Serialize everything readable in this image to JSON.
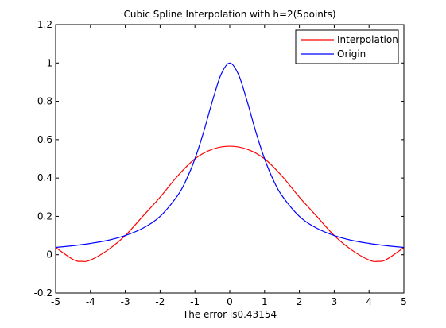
{
  "chart_data": {
    "type": "line",
    "title": "Cubic Spline Interpolation with h=2(5points)",
    "xlabel": "The error is0.43154",
    "ylabel": "",
    "xlim": [
      -5,
      5
    ],
    "ylim": [
      -0.2,
      1.2
    ],
    "xticks": [
      -5,
      -4,
      -3,
      -2,
      -1,
      0,
      1,
      2,
      3,
      4,
      5
    ],
    "yticks": [
      -0.2,
      0,
      0.2,
      0.4,
      0.6,
      0.8,
      1,
      1.2
    ],
    "xtick_labels": [
      "-5",
      "-4",
      "-3",
      "-2",
      "-1",
      "0",
      "1",
      "2",
      "3",
      "4",
      "5"
    ],
    "ytick_labels": [
      "-0.2",
      "0",
      "0.2",
      "0.4",
      "0.6",
      "0.8",
      "1",
      "1.2"
    ],
    "grid": false,
    "legend": {
      "position": "top-right"
    },
    "series": [
      {
        "name": "Interpolation",
        "color": "#ff0000",
        "x": [
          -5,
          -4.5,
          -4.25,
          -4,
          -3.5,
          -3,
          -2.5,
          -2,
          -1.5,
          -1,
          -0.5,
          0,
          0.5,
          1,
          1.5,
          2,
          2.5,
          3,
          3.5,
          4,
          4.25,
          4.5,
          5
        ],
        "y": [
          0.038,
          -0.025,
          -0.035,
          -0.028,
          0.025,
          0.1,
          0.2,
          0.3,
          0.41,
          0.5,
          0.55,
          0.566,
          0.55,
          0.5,
          0.41,
          0.3,
          0.2,
          0.1,
          0.025,
          -0.028,
          -0.035,
          -0.025,
          0.038
        ]
      },
      {
        "name": "Origin",
        "color": "#0000ff",
        "x": [
          -5,
          -4.5,
          -4,
          -3.5,
          -3,
          -2.5,
          -2,
          -1.5,
          -1.25,
          -1,
          -0.75,
          -0.5,
          -0.25,
          0,
          0.25,
          0.5,
          0.75,
          1,
          1.25,
          1.5,
          2,
          2.5,
          3,
          3.5,
          4,
          4.5,
          5
        ],
        "y": [
          0.038,
          0.047,
          0.059,
          0.075,
          0.1,
          0.138,
          0.2,
          0.308,
          0.39,
          0.5,
          0.64,
          0.8,
          0.94,
          1.0,
          0.94,
          0.8,
          0.64,
          0.5,
          0.39,
          0.308,
          0.2,
          0.138,
          0.1,
          0.075,
          0.059,
          0.047,
          0.038
        ]
      }
    ]
  }
}
